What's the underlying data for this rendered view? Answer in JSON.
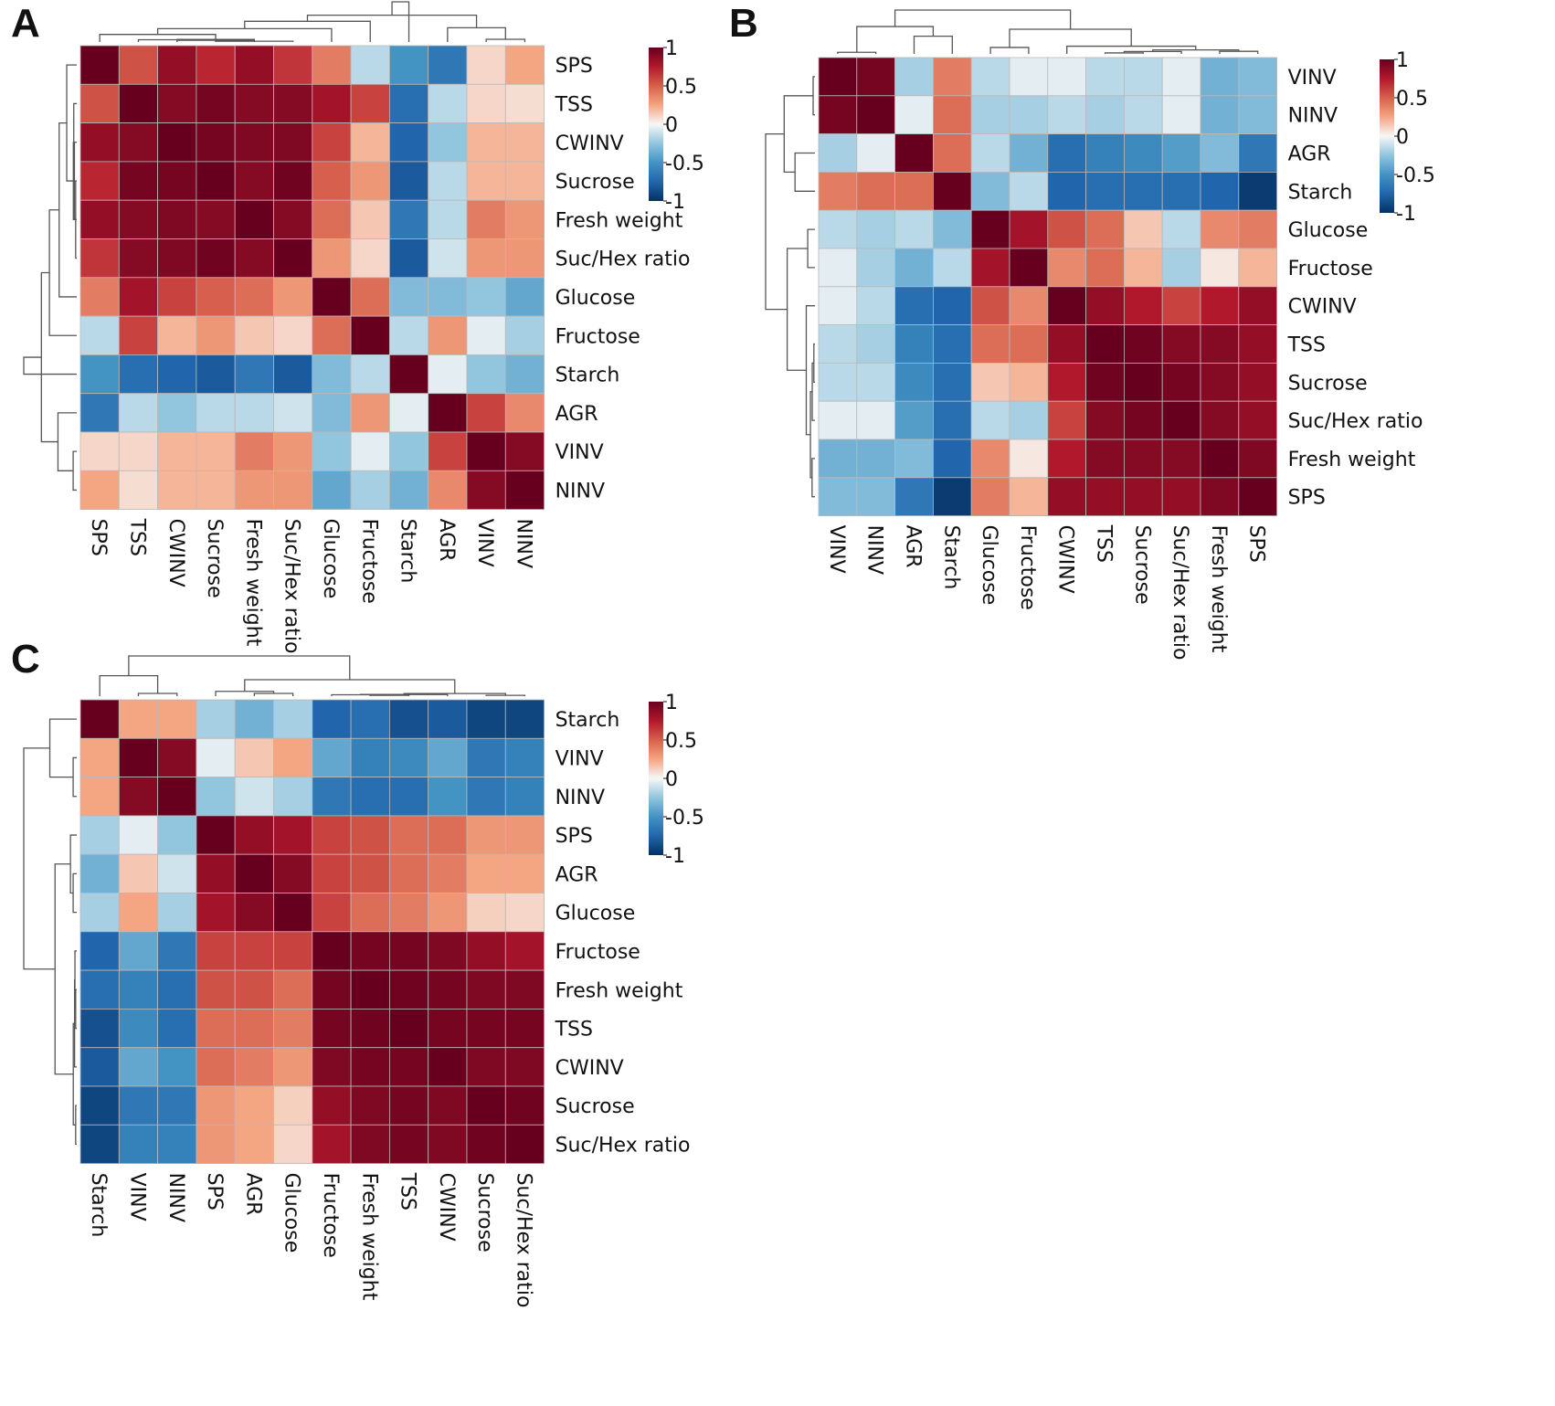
{
  "colorbar": {
    "ticks": [
      {
        "value": 1,
        "label": "1"
      },
      {
        "value": 0.5,
        "label": "0.5"
      },
      {
        "value": 0,
        "label": "0"
      },
      {
        "value": -0.5,
        "label": "-0.5"
      },
      {
        "value": -1,
        "label": "-1"
      }
    ],
    "colors": {
      "neg": "#053061",
      "mid": "#f7f7f7",
      "pos": "#67001f"
    }
  },
  "chart_data": [
    {
      "type": "heatmap",
      "panel_label": "A",
      "labels": [
        "SPS",
        "TSS",
        "CWINV",
        "Sucrose",
        "Fresh weight",
        "Suc/Hex ratio",
        "Glucose",
        "Fructose",
        "Starch",
        "AGR",
        "VINV",
        "NINV"
      ],
      "values": [
        [
          1.0,
          0.55,
          0.85,
          0.7,
          0.85,
          0.65,
          0.4,
          -0.15,
          -0.5,
          -0.65,
          0.1,
          0.25
        ],
        [
          0.55,
          1.0,
          0.9,
          0.95,
          0.9,
          0.9,
          0.8,
          0.6,
          -0.7,
          -0.15,
          0.1,
          0.08
        ],
        [
          0.85,
          0.9,
          1.0,
          0.95,
          0.92,
          0.92,
          0.6,
          0.2,
          -0.75,
          -0.25,
          0.2,
          0.2
        ],
        [
          0.7,
          0.95,
          0.95,
          1.0,
          0.9,
          0.97,
          0.5,
          0.3,
          -0.8,
          -0.15,
          0.2,
          0.2
        ],
        [
          0.85,
          0.9,
          0.92,
          0.9,
          1.0,
          0.9,
          0.45,
          0.15,
          -0.65,
          -0.15,
          0.4,
          0.3
        ],
        [
          0.65,
          0.9,
          0.92,
          0.97,
          0.9,
          1.0,
          0.3,
          0.1,
          -0.8,
          -0.1,
          0.3,
          0.3
        ],
        [
          0.4,
          0.8,
          0.6,
          0.5,
          0.45,
          0.3,
          1.0,
          0.45,
          -0.3,
          -0.3,
          -0.25,
          -0.4
        ],
        [
          -0.15,
          0.6,
          0.2,
          0.3,
          0.15,
          0.1,
          0.45,
          1.0,
          -0.15,
          0.3,
          -0.05,
          -0.2
        ],
        [
          -0.5,
          -0.7,
          -0.75,
          -0.8,
          -0.65,
          -0.8,
          -0.3,
          -0.15,
          1.0,
          -0.05,
          -0.25,
          -0.35
        ],
        [
          -0.65,
          -0.15,
          -0.25,
          -0.15,
          -0.15,
          -0.1,
          -0.3,
          0.3,
          -0.05,
          1.0,
          0.6,
          0.35
        ],
        [
          0.1,
          0.1,
          0.2,
          0.2,
          0.4,
          0.3,
          -0.25,
          -0.05,
          -0.25,
          0.6,
          1.0,
          0.9
        ],
        [
          0.25,
          0.08,
          0.2,
          0.2,
          0.3,
          0.3,
          -0.4,
          -0.2,
          -0.35,
          0.35,
          0.9,
          1.0
        ]
      ]
    },
    {
      "type": "heatmap",
      "panel_label": "B",
      "labels": [
        "VINV",
        "NINV",
        "AGR",
        "Starch",
        "Glucose",
        "Fructose",
        "CWINV",
        "TSS",
        "Sucrose",
        "Suc/Hex ratio",
        "Fresh weight",
        "SPS"
      ],
      "values": [
        [
          1.0,
          0.95,
          -0.2,
          0.4,
          -0.15,
          -0.05,
          -0.05,
          -0.15,
          -0.15,
          -0.05,
          -0.35,
          -0.3
        ],
        [
          0.95,
          1.0,
          -0.05,
          0.45,
          -0.2,
          -0.2,
          -0.15,
          -0.2,
          -0.15,
          -0.05,
          -0.35,
          -0.3
        ],
        [
          -0.2,
          -0.05,
          1.0,
          0.45,
          -0.15,
          -0.35,
          -0.7,
          -0.6,
          -0.55,
          -0.45,
          -0.3,
          -0.65
        ],
        [
          0.4,
          0.45,
          0.45,
          1.0,
          -0.3,
          -0.15,
          -0.75,
          -0.7,
          -0.7,
          -0.7,
          -0.75,
          -0.95
        ],
        [
          -0.15,
          -0.2,
          -0.15,
          -0.3,
          1.0,
          0.8,
          0.55,
          0.45,
          0.15,
          -0.15,
          0.35,
          0.4
        ],
        [
          -0.05,
          -0.2,
          -0.35,
          -0.15,
          0.8,
          1.0,
          0.35,
          0.45,
          0.2,
          -0.2,
          0.05,
          0.2
        ],
        [
          -0.05,
          -0.15,
          -0.7,
          -0.75,
          0.55,
          0.35,
          1.0,
          0.85,
          0.75,
          0.6,
          0.75,
          0.85
        ],
        [
          -0.15,
          -0.2,
          -0.6,
          -0.7,
          0.45,
          0.45,
          0.85,
          1.0,
          0.97,
          0.9,
          0.9,
          0.85
        ],
        [
          -0.15,
          -0.15,
          -0.55,
          -0.7,
          0.15,
          0.2,
          0.75,
          0.97,
          1.0,
          0.95,
          0.9,
          0.85
        ],
        [
          -0.05,
          -0.05,
          -0.45,
          -0.7,
          -0.15,
          -0.2,
          0.6,
          0.9,
          0.95,
          1.0,
          0.9,
          0.85
        ],
        [
          -0.35,
          -0.35,
          -0.3,
          -0.75,
          0.35,
          0.05,
          0.75,
          0.9,
          0.9,
          0.9,
          1.0,
          0.92
        ],
        [
          -0.3,
          -0.3,
          -0.65,
          -0.95,
          0.4,
          0.2,
          0.85,
          0.85,
          0.85,
          0.85,
          0.92,
          1.0
        ]
      ]
    },
    {
      "type": "heatmap",
      "panel_label": "C",
      "labels": [
        "Starch",
        "VINV",
        "NINV",
        "SPS",
        "AGR",
        "Glucose",
        "Fructose",
        "Fresh weight",
        "TSS",
        "CWINV",
        "Sucrose",
        "Suc/Hex ratio"
      ],
      "values": [
        [
          1.0,
          0.25,
          0.25,
          -0.2,
          -0.35,
          -0.2,
          -0.75,
          -0.7,
          -0.85,
          -0.8,
          -0.9,
          -0.9
        ],
        [
          0.25,
          1.0,
          0.9,
          -0.05,
          0.15,
          0.25,
          -0.4,
          -0.6,
          -0.55,
          -0.4,
          -0.65,
          -0.6
        ],
        [
          0.25,
          0.9,
          1.0,
          -0.25,
          -0.1,
          -0.2,
          -0.65,
          -0.7,
          -0.7,
          -0.5,
          -0.65,
          -0.6
        ],
        [
          -0.2,
          -0.05,
          -0.25,
          1.0,
          0.85,
          0.8,
          0.6,
          0.55,
          0.45,
          0.45,
          0.3,
          0.3
        ],
        [
          -0.35,
          0.15,
          -0.1,
          0.85,
          1.0,
          0.9,
          0.6,
          0.55,
          0.45,
          0.4,
          0.25,
          0.25
        ],
        [
          -0.2,
          0.25,
          -0.2,
          0.8,
          0.9,
          1.0,
          0.6,
          0.45,
          0.4,
          0.3,
          0.12,
          0.1
        ],
        [
          -0.75,
          -0.4,
          -0.65,
          0.6,
          0.6,
          0.6,
          1.0,
          0.95,
          0.95,
          0.92,
          0.85,
          0.8
        ],
        [
          -0.7,
          -0.6,
          -0.7,
          0.55,
          0.55,
          0.45,
          0.95,
          1.0,
          0.97,
          0.95,
          0.92,
          0.92
        ],
        [
          -0.85,
          -0.55,
          -0.7,
          0.45,
          0.45,
          0.4,
          0.95,
          0.97,
          1.0,
          0.95,
          0.95,
          0.95
        ],
        [
          -0.8,
          -0.4,
          -0.5,
          0.45,
          0.4,
          0.3,
          0.92,
          0.95,
          0.95,
          1.0,
          0.92,
          0.92
        ],
        [
          -0.9,
          -0.65,
          -0.65,
          0.3,
          0.25,
          0.12,
          0.85,
          0.92,
          0.95,
          0.92,
          1.0,
          0.97
        ],
        [
          -0.9,
          -0.6,
          -0.6,
          0.3,
          0.25,
          0.1,
          0.8,
          0.92,
          0.95,
          0.92,
          0.97,
          1.0
        ]
      ]
    }
  ]
}
